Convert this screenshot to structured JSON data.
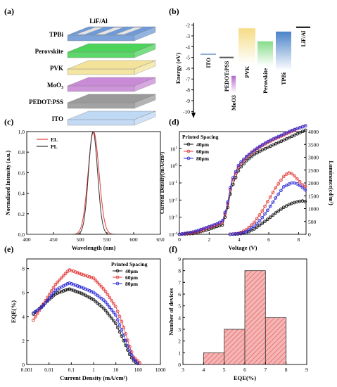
{
  "chart_data": [
    {
      "panel": "(a)",
      "type": "diagram",
      "layers": [
        {
          "label": "TPBi",
          "color": "#6f9ad8"
        },
        {
          "label": "Perovskite",
          "color": "#4cd35a"
        },
        {
          "label": "PVK",
          "color": "#f3e39a"
        },
        {
          "label": "MoO3",
          "color": "#c98ad6"
        },
        {
          "label": "PEDOT:PSS",
          "color": "#9a9a9a"
        },
        {
          "label": "ITO",
          "color": "#bfd8f4"
        }
      ],
      "top_label": "LiF/Al"
    },
    {
      "panel": "(b)",
      "type": "bar",
      "ylabel": "Energy (eV)",
      "ylim": [
        -10.5,
        -1.5
      ],
      "yticks": [
        -2,
        -3,
        -4,
        -5,
        -6,
        -7,
        -8,
        -9,
        -10
      ],
      "levels": [
        {
          "name": "ITO",
          "top": -4.7,
          "bottom": -4.7,
          "color": "#8fb0d8"
        },
        {
          "name": "PEDOT:PSS",
          "top": -5.0,
          "bottom": -5.0,
          "color": "#555555"
        },
        {
          "name": "MoO3",
          "top": -6.7,
          "bottom": -8.3,
          "color": "#b567c8"
        },
        {
          "name": "PVK",
          "top": -2.3,
          "bottom": -5.6,
          "color": "#f6dc86"
        },
        {
          "name": "Perovskite",
          "top": -3.5,
          "bottom": -5.8,
          "color": "#86dc8a"
        },
        {
          "name": "TPBi",
          "top": -2.6,
          "bottom": -6.2,
          "color": "#4b83c9"
        },
        {
          "name": "LiF/Al",
          "top": -2.2,
          "bottom": -2.2,
          "color": "#000000"
        }
      ]
    },
    {
      "panel": "(c)",
      "type": "line",
      "xlabel": "Wavelength (nm)",
      "ylabel": "Normalized Intensity (a.u.)",
      "xlim": [
        400,
        650
      ],
      "ylim": [
        0,
        1.0
      ],
      "xticks": [
        "400",
        "450",
        "500",
        "550",
        "600",
        "650"
      ],
      "yticks": [
        "0.0",
        "0.2",
        "0.4",
        "0.6",
        "0.8",
        "1.0"
      ],
      "series": [
        {
          "name": "EL",
          "color": "#e33b3b",
          "peak": 525,
          "fwhm": 24
        },
        {
          "name": "PL",
          "color": "#333333",
          "peak": 524,
          "fwhm": 20
        }
      ]
    },
    {
      "panel": "(d)",
      "type": "line",
      "xlabel": "Voltage (V)",
      "ylabel": "Current Density(mA/cm²)",
      "y2label": "Luminance(cd/m²)",
      "xlim": [
        0,
        8.5
      ],
      "ylim_log": [
        -4,
        2
      ],
      "y2lim": [
        0,
        4000
      ],
      "xticks": [
        "0",
        "2",
        "4",
        "6",
        "8"
      ],
      "y2ticks": [
        "0",
        "500",
        "1000",
        "1500",
        "2000",
        "2500",
        "3000",
        "3500",
        "4000"
      ],
      "legend_title": "Printed Spacing",
      "series": [
        {
          "name": "40μm",
          "color": "#111111",
          "j": [
            [
              0,
              -4
            ],
            [
              1,
              -3.95
            ],
            [
              2,
              -3.7
            ],
            [
              2.5,
              -3.55
            ],
            [
              2.9,
              -3.45
            ],
            [
              3.2,
              -2.6
            ],
            [
              3.5,
              -1.3
            ],
            [
              4,
              -0.2
            ],
            [
              4.5,
              0.3
            ],
            [
              5,
              0.65
            ],
            [
              5.5,
              0.9
            ],
            [
              6,
              1.1
            ],
            [
              6.5,
              1.3
            ],
            [
              7,
              1.5
            ],
            [
              7.5,
              1.7
            ],
            [
              8,
              1.9
            ],
            [
              8.5,
              2.1
            ]
          ],
          "lum": [
            [
              3.4,
              0
            ],
            [
              4,
              15
            ],
            [
              4.5,
              60
            ],
            [
              5,
              200
            ],
            [
              5.5,
              400
            ],
            [
              6,
              620
            ],
            [
              6.5,
              850
            ],
            [
              7,
              1050
            ],
            [
              7.5,
              1200
            ],
            [
              8,
              1280
            ],
            [
              8.3,
              1300
            ],
            [
              8.5,
              1270
            ]
          ]
        },
        {
          "name": "60μm",
          "color": "#e53a3a",
          "j": [
            [
              0,
              -4
            ],
            [
              1,
              -3.9
            ],
            [
              2,
              -3.6
            ],
            [
              2.5,
              -3.45
            ],
            [
              2.9,
              -3.3
            ],
            [
              3.2,
              -2.4
            ],
            [
              3.5,
              -1.0
            ],
            [
              4,
              0.0
            ],
            [
              4.5,
              0.5
            ],
            [
              5,
              0.85
            ],
            [
              5.5,
              1.15
            ],
            [
              6,
              1.4
            ],
            [
              6.5,
              1.6
            ],
            [
              7,
              1.8
            ],
            [
              7.5,
              2.0
            ],
            [
              8,
              2.2
            ],
            [
              8.5,
              2.35
            ]
          ],
          "lum": [
            [
              3.4,
              0
            ],
            [
              4,
              40
            ],
            [
              4.5,
              180
            ],
            [
              5,
              450
            ],
            [
              5.5,
              850
            ],
            [
              6,
              1350
            ],
            [
              6.5,
              1850
            ],
            [
              7,
              2250
            ],
            [
              7.3,
              2400
            ],
            [
              7.6,
              2350
            ],
            [
              8,
              2100
            ],
            [
              8.3,
              1900
            ],
            [
              8.5,
              1850
            ]
          ]
        },
        {
          "name": "80μm",
          "color": "#2b2bd8",
          "j": [
            [
              0,
              -4
            ],
            [
              1,
              -3.85
            ],
            [
              2,
              -3.55
            ],
            [
              2.5,
              -3.4
            ],
            [
              2.9,
              -3.2
            ],
            [
              3.2,
              -2.3
            ],
            [
              3.5,
              -0.9
            ],
            [
              4,
              0.1
            ],
            [
              4.5,
              0.55
            ],
            [
              5,
              0.9
            ],
            [
              5.5,
              1.2
            ],
            [
              6,
              1.45
            ],
            [
              6.5,
              1.65
            ],
            [
              7,
              1.85
            ],
            [
              7.5,
              2.05
            ],
            [
              8,
              2.2
            ],
            [
              8.5,
              2.35
            ]
          ],
          "lum": [
            [
              3.4,
              0
            ],
            [
              4,
              25
            ],
            [
              4.5,
              110
            ],
            [
              5,
              300
            ],
            [
              5.5,
              600
            ],
            [
              6,
              1000
            ],
            [
              6.5,
              1450
            ],
            [
              7,
              1850
            ],
            [
              7.5,
              2000
            ],
            [
              7.8,
              2000
            ],
            [
              8.2,
              1850
            ],
            [
              8.5,
              1700
            ]
          ]
        }
      ]
    },
    {
      "panel": "(e)",
      "type": "line",
      "xlabel": "Current Density (mA/cm²)",
      "ylabel": "EQE(%)",
      "xlim_log": [
        -3,
        3
      ],
      "ylim": [
        0,
        8.8
      ],
      "xticks": [
        "0.001",
        "0.01",
        "0.1",
        "1",
        "10",
        "100",
        "1000"
      ],
      "yticks": [
        "0",
        "2",
        "4",
        "6",
        "8"
      ],
      "legend_title": "Printed Spacing",
      "series": [
        {
          "name": "40μm",
          "color": "#111111",
          "pts": [
            [
              -2.7,
              4.2
            ],
            [
              -2.3,
              4.9
            ],
            [
              -1.7,
              5.9
            ],
            [
              -1.1,
              6.3
            ],
            [
              -0.5,
              5.9
            ],
            [
              0,
              5.4
            ],
            [
              0.5,
              4.6
            ],
            [
              1,
              3.4
            ],
            [
              1.3,
              2.2
            ],
            [
              1.6,
              0.9
            ],
            [
              1.8,
              0.3
            ],
            [
              2.0,
              0.05
            ]
          ]
        },
        {
          "name": "60μm",
          "color": "#e53a3a",
          "pts": [
            [
              -2.7,
              3.7
            ],
            [
              -2.3,
              4.9
            ],
            [
              -1.7,
              6.7
            ],
            [
              -1.1,
              7.9
            ],
            [
              -0.5,
              7.5
            ],
            [
              0,
              7.2
            ],
            [
              0.5,
              6.2
            ],
            [
              1,
              4.8
            ],
            [
              1.3,
              3.4
            ],
            [
              1.6,
              1.6
            ],
            [
              1.8,
              0.6
            ],
            [
              2.1,
              0.1
            ]
          ]
        },
        {
          "name": "80μm",
          "color": "#2b2bd8",
          "pts": [
            [
              -2.7,
              4.3
            ],
            [
              -2.3,
              4.8
            ],
            [
              -1.7,
              6.2
            ],
            [
              -1.1,
              6.8
            ],
            [
              -0.5,
              6.4
            ],
            [
              0,
              6.0
            ],
            [
              0.5,
              5.3
            ],
            [
              1,
              4.1
            ],
            [
              1.3,
              2.7
            ],
            [
              1.6,
              1.2
            ],
            [
              1.8,
              0.45
            ],
            [
              2.0,
              0.05
            ]
          ]
        }
      ]
    },
    {
      "panel": "(f)",
      "type": "bar",
      "xlabel": "EQE(%)",
      "ylabel": "Number of devices",
      "xlim": [
        3,
        9
      ],
      "ylim": [
        0,
        9
      ],
      "xticks": [
        "3",
        "4",
        "5",
        "6",
        "7",
        "8",
        "9"
      ],
      "yticks": [
        "0",
        "1",
        "2",
        "3",
        "4",
        "5",
        "6",
        "7",
        "8",
        "9"
      ],
      "bins": [
        [
          4,
          5,
          1
        ],
        [
          5,
          6,
          3
        ],
        [
          6,
          7,
          8
        ],
        [
          7,
          8,
          4
        ]
      ]
    }
  ]
}
